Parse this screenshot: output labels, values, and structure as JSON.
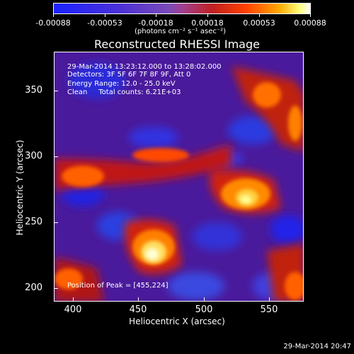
{
  "colorbar": {
    "labels": [
      "-0.00088",
      "-0.00053",
      "-0.00018",
      "0.00018",
      "0.00053",
      "0.00088"
    ],
    "units": "(photons cm⁻² s⁻¹ asec⁻²)"
  },
  "title": "Reconstructed RHESSI Image",
  "info": {
    "time": "29-Mar-2014 13:23:12.000 to 13:28:02.000",
    "detectors": "Detectors: 3F 5F 6F 7F 8F 9F, Att 0",
    "energy": "Energy Range: 12.0 - 25.0 keV",
    "clean": "Clean     Total counts: 6.21E+03",
    "peak": "Position of Peak = [455,224]"
  },
  "axes": {
    "xlabel": "Heliocentric X (arcsec)",
    "ylabel": "Heliocentric Y (arcsec)",
    "xticks": [
      "400",
      "450",
      "500",
      "550"
    ],
    "yticks": [
      "200",
      "250",
      "300",
      "350"
    ],
    "xlim": [
      385,
      575
    ],
    "ylim": [
      190,
      380
    ]
  },
  "footer": "29-Mar-2014 20:47"
}
